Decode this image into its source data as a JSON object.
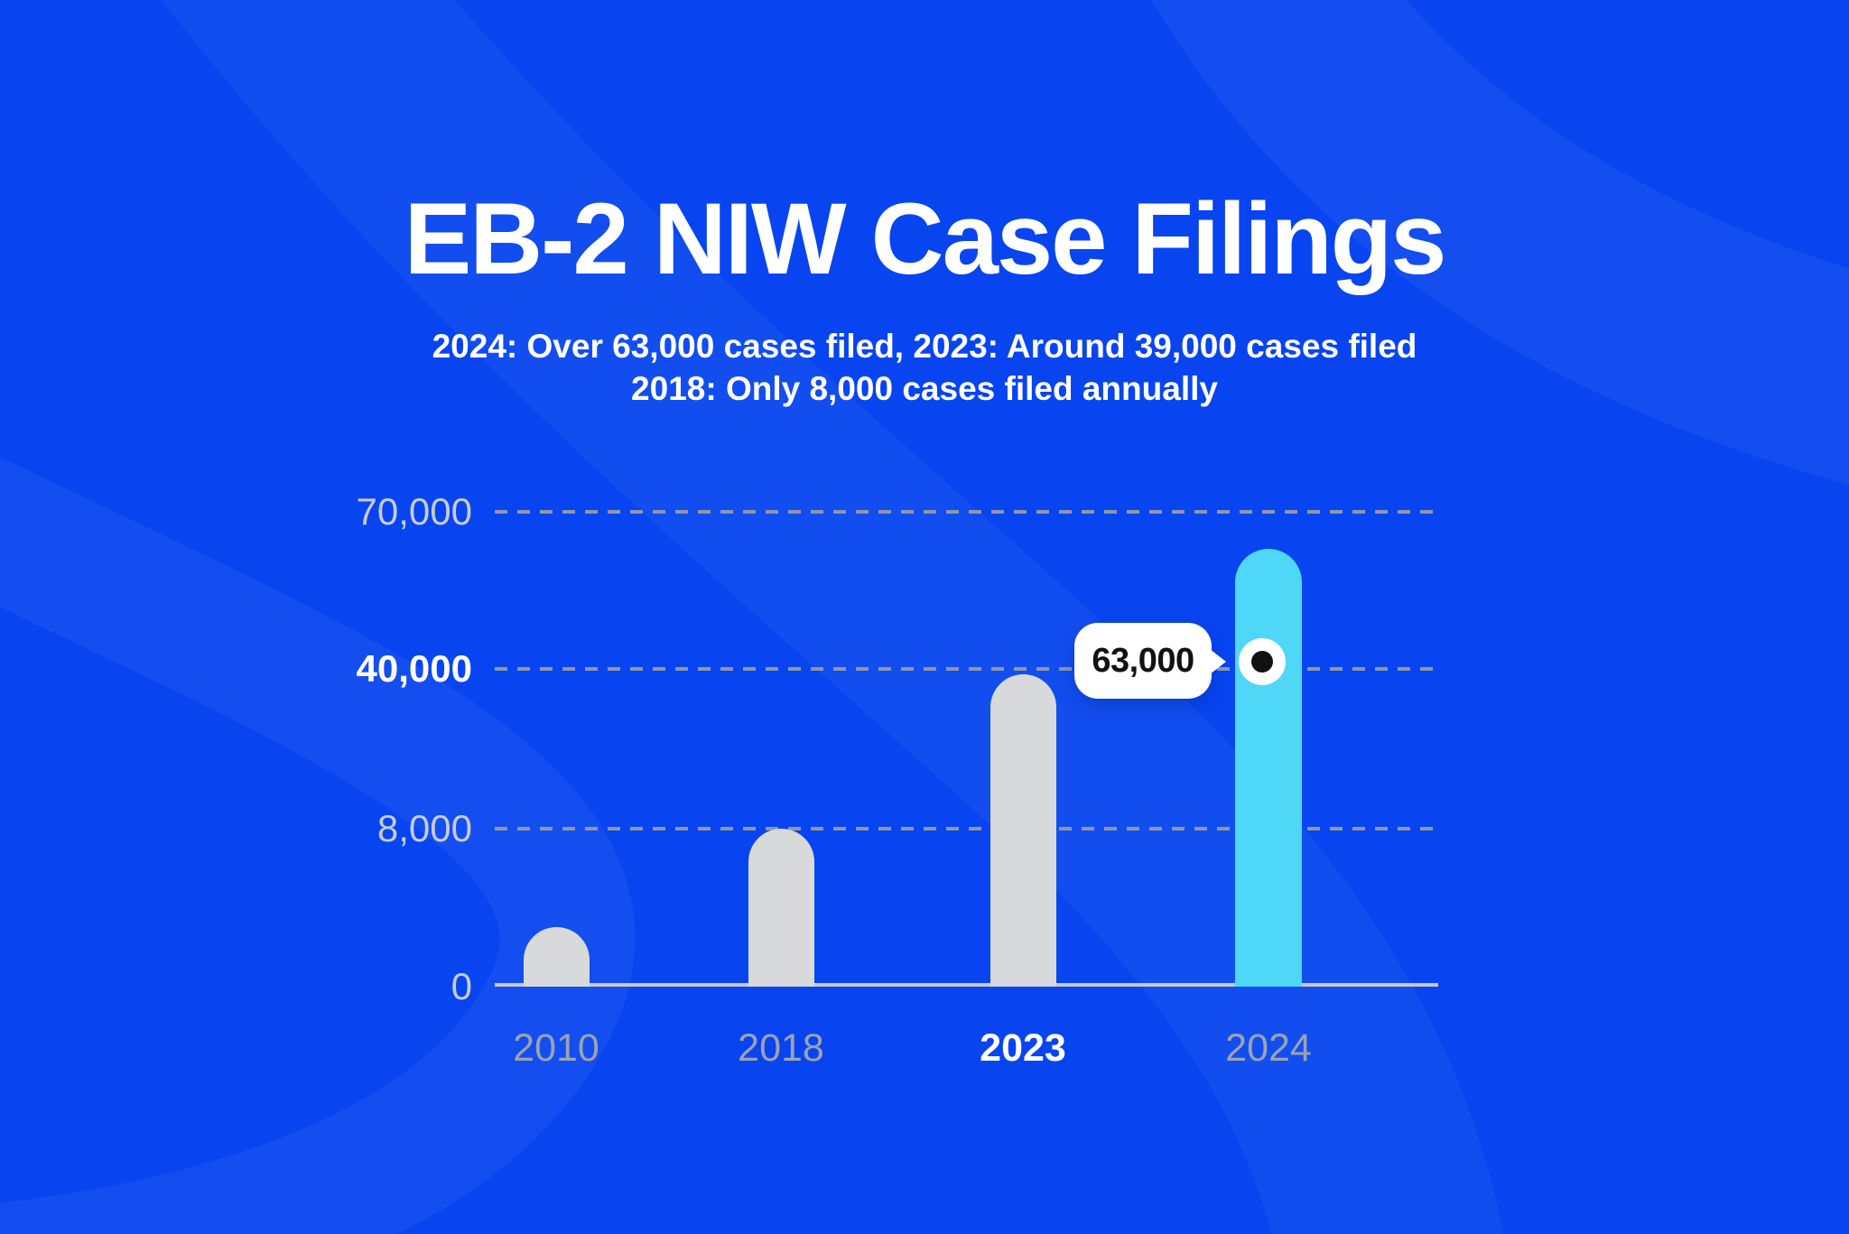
{
  "chart": {
    "title": "EB-2 NIW Case Filings",
    "subtitle_line1": "2024: Over 63,000 cases filed, 2023: Around 39,000 cases filed",
    "subtitle_line2": "2018: Only 8,000 cases filed annually",
    "tooltip_value": "63,000"
  },
  "chart_data": {
    "type": "bar",
    "title": "EB-2 NIW Case Filings",
    "categories": [
      "2010",
      "2018",
      "2023",
      "2024"
    ],
    "values": [
      3000,
      8000,
      39000,
      63000
    ],
    "xlabel": "",
    "ylabel": "",
    "y_ticks": [
      0,
      8000,
      40000,
      70000
    ],
    "y_tick_labels": [
      "0",
      "8,000",
      "40,000",
      "70,000"
    ],
    "ylim": [
      0,
      70000
    ],
    "grid": "horizontal-dashed",
    "legend": "none",
    "highlight_category": "2024",
    "x_tick_highlight": "2023",
    "y_tick_highlight": "40,000",
    "annotations": [
      {
        "target": "2024",
        "value": 63000,
        "label": "63,000",
        "style": "white-bubble-pointing-to-dot-marker-on-bar"
      }
    ],
    "colors": {
      "background": "#0845f0",
      "bar_default": "#d8d9db",
      "bar_highlight": "#4fd7f7",
      "grid": "#8f97a6",
      "axis_line": "#c6c8cd",
      "y_tick_label": "#c6ccd8",
      "x_tick_label": "#9ba3b1",
      "tick_label_highlight": "#ffffff",
      "title_text": "#ffffff",
      "tooltip_bg": "#ffffff",
      "tooltip_text": "#111111",
      "marker_outer": "#ffffff",
      "marker_inner": "#111111"
    }
  }
}
